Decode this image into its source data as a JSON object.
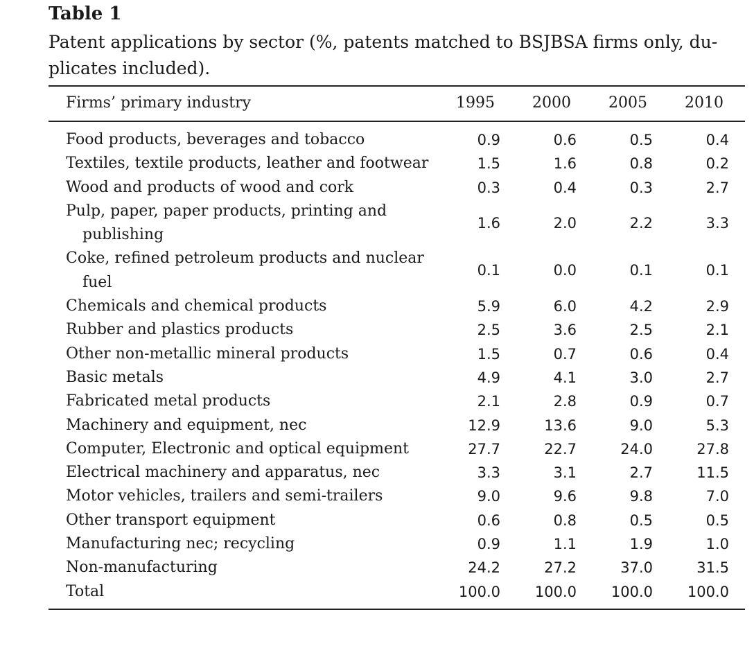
{
  "table": {
    "label": "Table 1",
    "caption_lines": [
      "Patent applications by sector (%, patents matched to BSJBSA firms only, du-",
      "plicates included)."
    ],
    "header": {
      "industry": "Firms’ primary industry",
      "years": [
        "1995",
        "2000",
        "2005",
        "2010"
      ]
    },
    "rows": [
      {
        "label": [
          "Food products, beverages and tobacco"
        ],
        "values": [
          "0.9",
          "0.6",
          "0.5",
          "0.4"
        ]
      },
      {
        "label": [
          "Textiles, textile products, leather and footwear"
        ],
        "values": [
          "1.5",
          "1.6",
          "0.8",
          "0.2"
        ]
      },
      {
        "label": [
          "Wood and products of wood and cork"
        ],
        "values": [
          "0.3",
          "0.4",
          "0.3",
          "2.7"
        ]
      },
      {
        "label": [
          "Pulp, paper, paper products, printing and",
          "publishing"
        ],
        "values": [
          "1.6",
          "2.0",
          "2.2",
          "3.3"
        ]
      },
      {
        "label": [
          "Coke, refined petroleum products and nuclear",
          "fuel"
        ],
        "values": [
          "0.1",
          "0.0",
          "0.1",
          "0.1"
        ]
      },
      {
        "label": [
          "Chemicals and chemical products"
        ],
        "values": [
          "5.9",
          "6.0",
          "4.2",
          "2.9"
        ]
      },
      {
        "label": [
          "Rubber and plastics products"
        ],
        "values": [
          "2.5",
          "3.6",
          "2.5",
          "2.1"
        ]
      },
      {
        "label": [
          "Other non-metallic mineral products"
        ],
        "values": [
          "1.5",
          "0.7",
          "0.6",
          "0.4"
        ]
      },
      {
        "label": [
          "Basic metals"
        ],
        "values": [
          "4.9",
          "4.1",
          "3.0",
          "2.7"
        ]
      },
      {
        "label": [
          "Fabricated metal products"
        ],
        "values": [
          "2.1",
          "2.8",
          "0.9",
          "0.7"
        ]
      },
      {
        "label": [
          "Machinery and equipment, nec"
        ],
        "values": [
          "12.9",
          "13.6",
          "9.0",
          "5.3"
        ]
      },
      {
        "label": [
          "Computer, Electronic and optical equipment"
        ],
        "values": [
          "27.7",
          "22.7",
          "24.0",
          "27.8"
        ]
      },
      {
        "label": [
          "Electrical machinery and apparatus, nec"
        ],
        "values": [
          "3.3",
          "3.1",
          "2.7",
          "11.5"
        ]
      },
      {
        "label": [
          "Motor vehicles, trailers and semi-trailers"
        ],
        "values": [
          "9.0",
          "9.6",
          "9.8",
          "7.0"
        ]
      },
      {
        "label": [
          "Other transport equipment"
        ],
        "values": [
          "0.6",
          "0.8",
          "0.5",
          "0.5"
        ]
      },
      {
        "label": [
          "Manufacturing nec; recycling"
        ],
        "values": [
          "0.9",
          "1.1",
          "1.9",
          "1.0"
        ]
      },
      {
        "label": [
          "Non-manufacturing"
        ],
        "values": [
          "24.2",
          "27.2",
          "37.0",
          "31.5"
        ]
      },
      {
        "label": [
          "Total"
        ],
        "values": [
          "100.0",
          "100.0",
          "100.0",
          "100.0"
        ]
      }
    ]
  }
}
